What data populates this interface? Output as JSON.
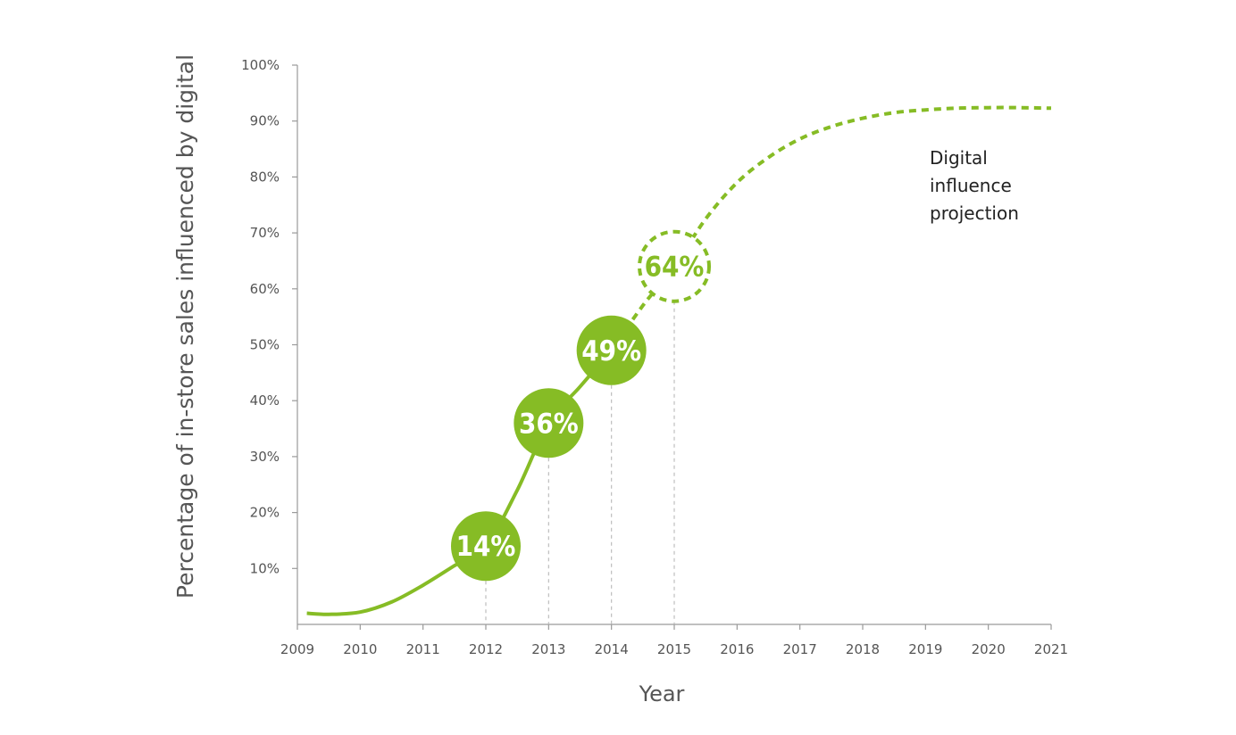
{
  "chart_data": {
    "type": "line",
    "title": "",
    "xlabel": "Year",
    "ylabel": "Percentage of in-store sales influenced by digital",
    "xlim": [
      2009,
      2021
    ],
    "ylim": [
      0,
      100
    ],
    "x_ticks": [
      "2009",
      "2010",
      "2011",
      "2012",
      "2013",
      "2014",
      "2015",
      "2016",
      "2017",
      "2018",
      "2019",
      "2020",
      "2021"
    ],
    "y_ticks": [
      "10%",
      "20%",
      "30%",
      "40%",
      "50%",
      "60%",
      "70%",
      "80%",
      "90%",
      "100%"
    ],
    "grid": false,
    "color": "#86bc25",
    "series": [
      {
        "style": "solid",
        "points": [
          [
            2009.15,
            2
          ],
          [
            2009.5,
            1.8
          ],
          [
            2010,
            2.2
          ],
          [
            2010.5,
            4
          ],
          [
            2011,
            7
          ],
          [
            2011.5,
            10.5
          ],
          [
            2012,
            14
          ],
          [
            2012.5,
            24
          ],
          [
            2013,
            36
          ],
          [
            2013.5,
            42.5
          ],
          [
            2014,
            49
          ]
        ]
      },
      {
        "style": "dashed",
        "annotation": "Digital influence projection",
        "points": [
          [
            2014,
            49
          ],
          [
            2014.5,
            57
          ],
          [
            2015,
            64
          ],
          [
            2015.5,
            72.5
          ],
          [
            2016,
            79
          ],
          [
            2016.5,
            83.5
          ],
          [
            2017,
            86.8
          ],
          [
            2017.5,
            89
          ],
          [
            2018,
            90.5
          ],
          [
            2018.5,
            91.5
          ],
          [
            2019,
            92
          ],
          [
            2019.5,
            92.3
          ],
          [
            2020,
            92.4
          ],
          [
            2020.5,
            92.4
          ],
          [
            2021,
            92.3
          ]
        ]
      }
    ],
    "markers": [
      {
        "x": 2012,
        "y": 14,
        "label": "14%",
        "style": "filled"
      },
      {
        "x": 2013,
        "y": 36,
        "label": "36%",
        "style": "filled"
      },
      {
        "x": 2014,
        "y": 49,
        "label": "49%",
        "style": "filled"
      },
      {
        "x": 2015,
        "y": 64,
        "label": "64%",
        "style": "projected"
      }
    ],
    "annotation_lines": [
      "Digital",
      "influence",
      "projection"
    ]
  }
}
